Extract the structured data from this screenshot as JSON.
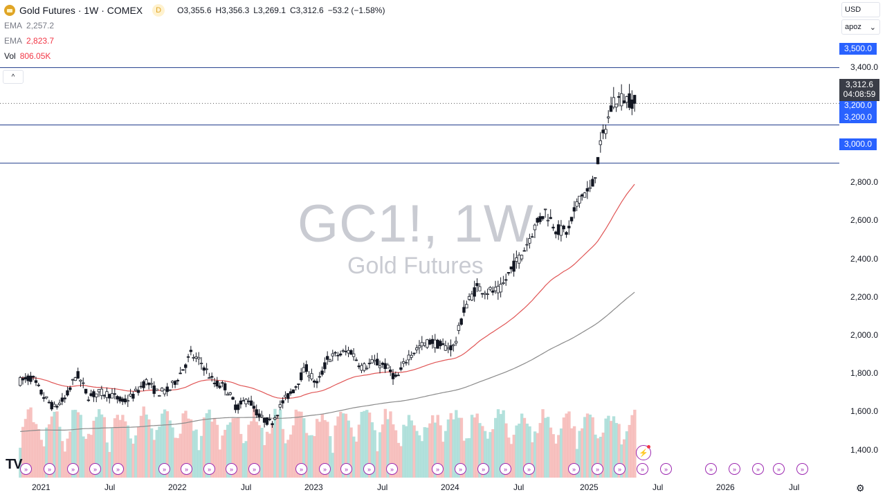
{
  "legend": {
    "title": "Gold Futures · 1W · COMEX",
    "badge": "D",
    "open_label": "O",
    "open": "3,355.6",
    "high_label": "H",
    "high": "3,356.3",
    "low_label": "L",
    "low": "3,269.1",
    "close_label": "C",
    "close": "3,312.6",
    "change": "−53.2 (−1.58%)",
    "ema1_label": "EMA",
    "ema1_value": "2,257.2",
    "ema2_label": "EMA",
    "ema2_value": "2,823.7",
    "vol_label": "Vol",
    "vol_value": "806.05K",
    "collapse_icon": "chevron-up-icon"
  },
  "watermark": {
    "symbol": "GC1!, 1W",
    "name": "Gold Futures"
  },
  "controls": {
    "currency": "USD",
    "scale_mode": "apoz",
    "collapse": "^",
    "dropdown": "⌄"
  },
  "current_price": {
    "price": "3,312.6",
    "countdown": "04:08:59"
  },
  "level_tags": [
    "3,500.0",
    "3,200.0",
    "3,200.0",
    "3,000.0"
  ],
  "price_axis": [
    "3,400.0",
    "2,800.0",
    "2,600.0",
    "2,400.0",
    "2,200.0",
    "2,000.0",
    "1,800.0",
    "1,600.0",
    "1,400.0"
  ],
  "time_axis": [
    "2021",
    "Jul",
    "2022",
    "Jul",
    "2023",
    "Jul",
    "2024",
    "Jul",
    "2025",
    "Jul",
    "2026",
    "Jul"
  ],
  "logo_text": "TV",
  "icons": {
    "gear": "gear-icon",
    "bolt": "lightning-icon",
    "event": "event-arrow-icon"
  },
  "colors": {
    "up": "#131722",
    "down": "#131722",
    "ema_fast": "#e05555",
    "ema_slow": "#8a8a8a",
    "vol_up": "#a6dcd6",
    "vol_down": "#f6b7b5",
    "hline": "#1e3a8a",
    "tag": "#2962ff",
    "event": "#9c27b0"
  },
  "chart_data": {
    "type": "candlestick",
    "symbol": "GC1!",
    "timeframe": "1W",
    "ylim": [
      1300,
      3600
    ],
    "horizontal_levels": [
      3500,
      3200,
      3000
    ],
    "last_price": 3312.6,
    "price_path": [
      [
        "2020-12-01",
        1860
      ],
      [
        "2021-01-01",
        1880
      ],
      [
        "2021-02-01",
        1780
      ],
      [
        "2021-03-01",
        1720
      ],
      [
        "2021-04-01",
        1770
      ],
      [
        "2021-05-01",
        1900
      ],
      [
        "2021-06-01",
        1780
      ],
      [
        "2021-07-01",
        1800
      ],
      [
        "2021-08-01",
        1790
      ],
      [
        "2021-09-01",
        1750
      ],
      [
        "2021-10-01",
        1790
      ],
      [
        "2021-11-01",
        1860
      ],
      [
        "2021-12-01",
        1800
      ],
      [
        "2022-01-01",
        1810
      ],
      [
        "2022-02-01",
        1900
      ],
      [
        "2022-03-01",
        2000
      ],
      [
        "2022-04-01",
        1950
      ],
      [
        "2022-05-01",
        1850
      ],
      [
        "2022-06-01",
        1830
      ],
      [
        "2022-07-01",
        1720
      ],
      [
        "2022-08-01",
        1770
      ],
      [
        "2022-09-01",
        1670
      ],
      [
        "2022-10-01",
        1640
      ],
      [
        "2022-11-01",
        1750
      ],
      [
        "2022-12-01",
        1820
      ],
      [
        "2023-01-01",
        1930
      ],
      [
        "2023-02-01",
        1840
      ],
      [
        "2023-03-01",
        1980
      ],
      [
        "2023-04-01",
        2000
      ],
      [
        "2023-05-01",
        2020
      ],
      [
        "2023-06-01",
        1930
      ],
      [
        "2023-07-01",
        1960
      ],
      [
        "2023-08-01",
        1940
      ],
      [
        "2023-09-01",
        1870
      ],
      [
        "2023-10-01",
        1990
      ],
      [
        "2023-11-01",
        2040
      ],
      [
        "2023-12-01",
        2070
      ],
      [
        "2024-01-01",
        2040
      ],
      [
        "2024-02-01",
        2040
      ],
      [
        "2024-03-01",
        2250
      ],
      [
        "2024-04-01",
        2350
      ],
      [
        "2024-05-01",
        2330
      ],
      [
        "2024-06-01",
        2330
      ],
      [
        "2024-07-01",
        2440
      ],
      [
        "2024-08-01",
        2530
      ],
      [
        "2024-09-01",
        2660
      ],
      [
        "2024-10-01",
        2750
      ],
      [
        "2024-11-01",
        2650
      ],
      [
        "2024-12-01",
        2640
      ],
      [
        "2025-01-01",
        2830
      ],
      [
        "2025-02-01",
        2860
      ],
      [
        "2025-03-01",
        3120
      ],
      [
        "2025-04-01",
        3330
      ],
      [
        "2025-05-01",
        3340
      ],
      [
        "2025-06-01",
        3312.6
      ]
    ],
    "ema_fast": {
      "label": "EMA",
      "last": 2823.7
    },
    "ema_slow": {
      "label": "EMA",
      "last": 2257.2
    },
    "volume": {
      "label": "Vol",
      "last": "806.05K"
    }
  }
}
